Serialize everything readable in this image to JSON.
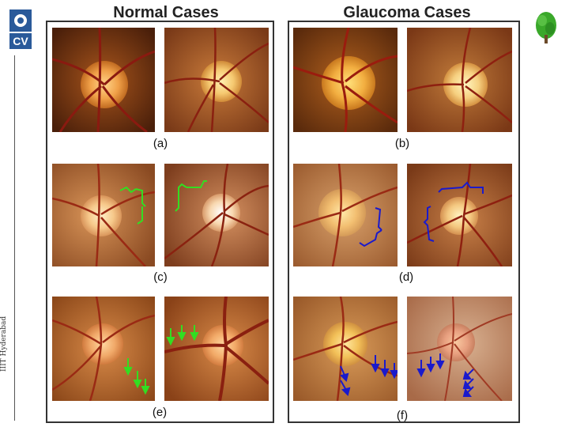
{
  "slide": {
    "left_title": "Normal Cases",
    "right_title": "Glaucoma Cases",
    "sidebar_text": "IIIT Hyderabad",
    "logo_text": "CV"
  },
  "panels": {
    "a": "(a)",
    "b": "(b)",
    "c": "(c)",
    "d": "(d)",
    "e": "(e)",
    "f": "(f)"
  },
  "colors": {
    "normal_marker": "#33dd22",
    "glaucoma_marker": "#1a1acc"
  }
}
